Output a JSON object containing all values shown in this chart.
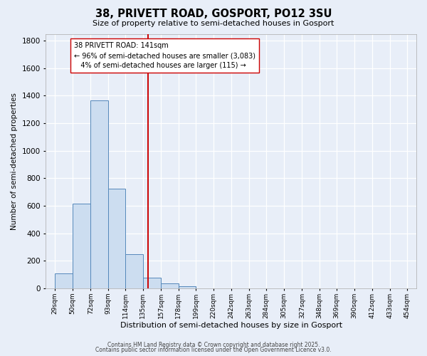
{
  "title": "38, PRIVETT ROAD, GOSPORT, PO12 3SU",
  "subtitle": "Size of property relative to semi-detached houses in Gosport",
  "xlabel": "Distribution of semi-detached houses by size in Gosport",
  "ylabel": "Number of semi-detached properties",
  "bar_edges": [
    29,
    50,
    72,
    93,
    114,
    135,
    157,
    178,
    199,
    220,
    242,
    263,
    284,
    305,
    327,
    348,
    369,
    390,
    412,
    433,
    454
  ],
  "bar_heights": [
    110,
    615,
    1365,
    725,
    250,
    80,
    35,
    15,
    2,
    0,
    0,
    0,
    0,
    0,
    0,
    0,
    0,
    0,
    0,
    2
  ],
  "bar_color": "#ccddf0",
  "bar_edge_color": "#5588bb",
  "vline_x": 141,
  "vline_color": "#cc0000",
  "ylim": [
    0,
    1850
  ],
  "xlim_min": 18,
  "xlim_max": 465,
  "annotation_line1": "38 PRIVETT ROAD: 141sqm",
  "annotation_line2": "← 96% of semi-detached houses are smaller (3,083)",
  "annotation_line3": "   4% of semi-detached houses are larger (115) →",
  "footer_line1": "Contains HM Land Registry data © Crown copyright and database right 2025.",
  "footer_line2": "Contains public sector information licensed under the Open Government Licence v3.0.",
  "bg_color": "#e8eef8",
  "plot_bg_color": "#e8eef8",
  "grid_color": "#ffffff",
  "tick_labels": [
    "29sqm",
    "50sqm",
    "72sqm",
    "93sqm",
    "114sqm",
    "135sqm",
    "157sqm",
    "178sqm",
    "199sqm",
    "220sqm",
    "242sqm",
    "263sqm",
    "284sqm",
    "305sqm",
    "327sqm",
    "348sqm",
    "369sqm",
    "390sqm",
    "412sqm",
    "433sqm",
    "454sqm"
  ],
  "title_fontsize": 10.5,
  "subtitle_fontsize": 8,
  "xlabel_fontsize": 8,
  "ylabel_fontsize": 7.5,
  "tick_fontsize": 6.5,
  "ytick_fontsize": 7.5,
  "annotation_fontsize": 7,
  "footer_fontsize": 5.5
}
